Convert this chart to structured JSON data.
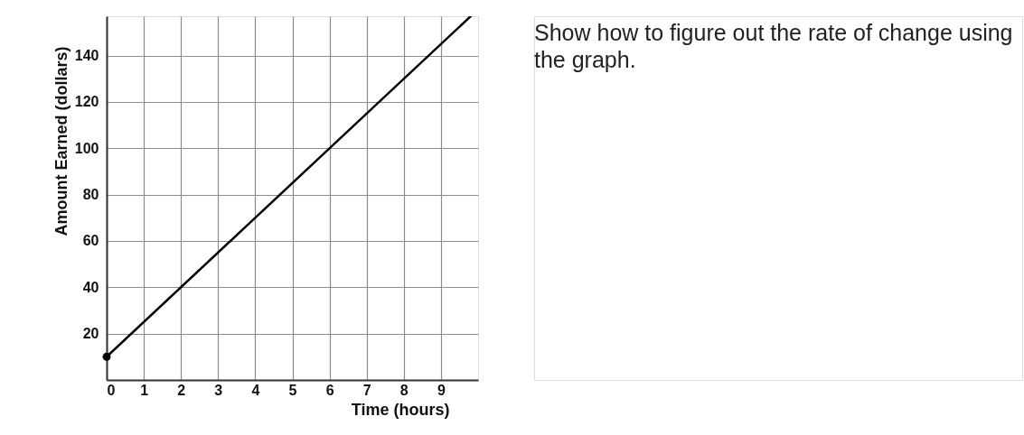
{
  "chart_data": {
    "type": "line",
    "xlabel": "Time (hours)",
    "ylabel": "Amount Earned (dollars)",
    "x": [
      0,
      9.8
    ],
    "series": [
      {
        "color": "#000000",
        "values": [
          10,
          157
        ],
        "marker": "none",
        "line_style": "solid"
      },
      {
        "type": "scatter",
        "x": [
          0
        ],
        "color": "#000000",
        "values": [
          10
        ],
        "marker": "circle"
      }
    ],
    "xlim": [
      0,
      10
    ],
    "ylim": [
      0,
      157
    ],
    "xticks": [
      0,
      1,
      2,
      3,
      4,
      5,
      6,
      7,
      8,
      9
    ],
    "yticks": [
      20,
      40,
      60,
      80,
      100,
      120,
      140
    ],
    "grid": true,
    "annotations": [
      "Show how to figure out the rate of change using the graph."
    ]
  }
}
